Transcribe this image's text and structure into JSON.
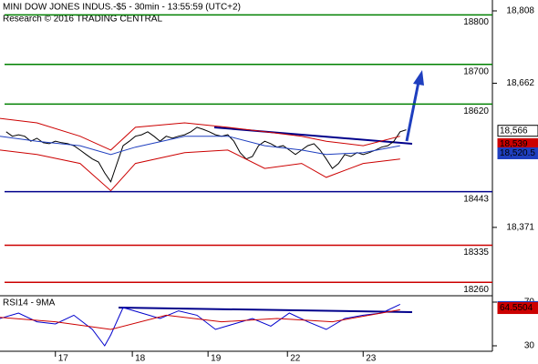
{
  "chart_data": [
    {
      "type": "line",
      "title": "MINI DOW JONES INDUS.-$5 - 30min - 13:55:59 (UTC+2)",
      "subtitle": "Research © 2016 TRADING CENTRAL",
      "xlim": [
        0,
        80
      ],
      "xticks": [
        {
          "value": 9,
          "label": "17"
        },
        {
          "value": 21.5,
          "label": "18"
        },
        {
          "value": 33.8,
          "label": "19"
        },
        {
          "value": 46.7,
          "label": "22"
        },
        {
          "value": 59,
          "label": "23"
        }
      ],
      "ylim": [
        18233,
        18830
      ],
      "yticks": [
        {
          "value": 18808,
          "label": "18,808"
        },
        {
          "value": 18662,
          "label": "18,662"
        },
        {
          "value": 18371,
          "label": "18,371"
        }
      ],
      "series": [
        {
          "color": "#000000",
          "x": [
            1,
            2,
            3,
            4,
            5,
            6,
            7,
            8,
            9,
            10,
            11,
            12,
            13,
            14,
            15,
            16,
            17,
            18,
            19,
            20,
            21,
            22,
            23,
            24,
            25,
            26,
            27,
            28,
            29,
            30,
            31,
            32,
            33,
            34,
            35,
            36,
            37,
            38,
            39,
            40,
            41,
            42,
            43,
            44,
            45,
            46,
            47,
            48,
            49,
            50,
            51,
            52,
            53,
            54,
            55,
            56,
            57,
            58,
            59,
            60,
            61,
            62,
            63,
            64,
            65,
            66
          ],
          "values": [
            18564,
            18555,
            18558,
            18555,
            18545,
            18551,
            18542,
            18540,
            18545,
            18542,
            18540,
            18536,
            18527,
            18518,
            18509,
            18503,
            18481,
            18463,
            18500,
            18536,
            18545,
            18555,
            18558,
            18564,
            18555,
            18545,
            18555,
            18551,
            18555,
            18558,
            18564,
            18573,
            18569,
            18564,
            18558,
            18555,
            18558,
            18545,
            18522,
            18509,
            18514,
            18536,
            18545,
            18540,
            18533,
            18536,
            18527,
            18518,
            18527,
            18536,
            18540,
            18527,
            18509,
            18490,
            18500,
            18518,
            18514,
            18522,
            18518,
            18522,
            18527,
            18533,
            18536,
            18545,
            18564,
            18568
          ]
        },
        {
          "color": "#cc0000",
          "x": [
            0,
            6,
            13,
            18,
            22,
            30,
            37,
            43,
            49,
            53,
            59,
            65
          ],
          "values": [
            18591,
            18582,
            18555,
            18527,
            18573,
            18582,
            18573,
            18564,
            18555,
            18545,
            18536,
            18555
          ]
        },
        {
          "color": "#cc0000",
          "x": [
            0,
            6,
            13,
            18,
            22,
            30,
            37,
            43,
            49,
            53,
            59,
            65
          ],
          "values": [
            18527,
            18518,
            18500,
            18445,
            18500,
            18522,
            18527,
            18490,
            18500,
            18472,
            18500,
            18509
          ]
        },
        {
          "color": "#1f3fbf",
          "x": [
            0,
            6,
            13,
            18,
            22,
            30,
            37,
            43,
            49,
            53,
            59,
            65
          ],
          "values": [
            18555,
            18545,
            18536,
            18518,
            18533,
            18555,
            18555,
            18536,
            18527,
            18518,
            18522,
            18536
          ]
        }
      ],
      "levels": [
        {
          "value": 18800,
          "color": "#008000"
        },
        {
          "value": 18700,
          "color": "#008000"
        },
        {
          "value": 18620,
          "color": "#008000"
        },
        {
          "value": 18443,
          "color": "#00008b"
        },
        {
          "value": 18335,
          "color": "#cc0000"
        },
        {
          "value": 18260,
          "color": "#cc0000"
        }
      ],
      "markers": [
        {
          "value": 18566,
          "label": "18,566",
          "color": "#ffffff"
        },
        {
          "value": 18539,
          "label": "18,539",
          "color": "#cc0000"
        },
        {
          "value": 18520.5,
          "label": "18,520.5",
          "color": "#1f3fbf"
        }
      ]
    },
    {
      "type": "line",
      "title": "RSI14 - 9MA",
      "ylim": [
        25,
        75
      ],
      "yticks": [
        30,
        70
      ],
      "series": [
        {
          "color": "#0000cc",
          "x": [
            0,
            3,
            6,
            9,
            12,
            15,
            17,
            18,
            20,
            23,
            26,
            29,
            32,
            35,
            38,
            41,
            44,
            47,
            50,
            53,
            56,
            59,
            62,
            65
          ],
          "values": [
            55,
            60,
            52,
            50,
            58,
            45,
            30,
            40,
            65,
            60,
            55,
            62,
            58,
            45,
            50,
            55,
            48,
            60,
            52,
            45,
            55,
            58,
            60,
            68
          ]
        },
        {
          "color": "#cc0000",
          "x": [
            0,
            9,
            18,
            27,
            36,
            45,
            54,
            65
          ],
          "values": [
            56,
            52,
            45,
            58,
            52,
            55,
            52,
            63
          ]
        }
      ],
      "markers": [
        {
          "value": 65.4936,
          "color": "#1f3fbf"
        },
        {
          "value": 64.5504,
          "color": "#cc0000"
        }
      ]
    }
  ]
}
